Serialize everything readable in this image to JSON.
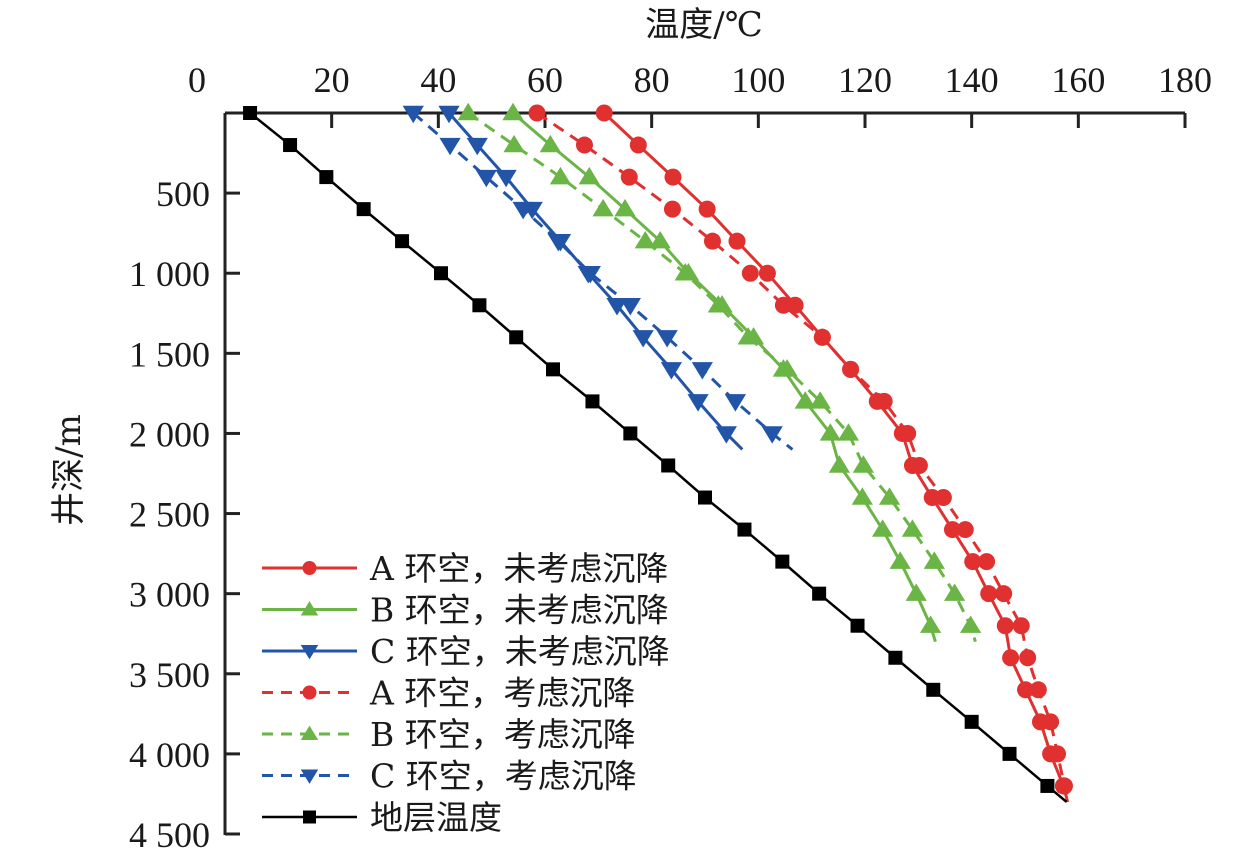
{
  "chart_data": {
    "type": "line",
    "title": "",
    "xlabel": "温度/℃",
    "ylabel": "井深/m",
    "x_axis_position": "top",
    "y_axis_inverted": true,
    "xlim": [
      0,
      180
    ],
    "ylim": [
      0,
      4500
    ],
    "xticks": [
      0,
      20,
      40,
      60,
      80,
      100,
      120,
      140,
      160,
      180
    ],
    "xtick_labels": [
      "0",
      "20",
      "40",
      "60",
      "80",
      "100",
      "120",
      "140",
      "160",
      "180"
    ],
    "yticks": [
      500,
      1000,
      1500,
      2000,
      2500,
      3000,
      3500,
      4000,
      4500
    ],
    "ytick_labels": [
      "500",
      "1 000",
      "1 500",
      "2 000",
      "2 500",
      "3 000",
      "3 500",
      "4 000",
      "4 500"
    ],
    "grid": false,
    "legend_position": "bottom-left",
    "series": [
      {
        "name": "A 环空，未考虑沉降",
        "color": "#e03030",
        "dash": "solid",
        "marker": "circle",
        "points": [
          [
            71.1,
            0
          ],
          [
            77.5,
            200
          ],
          [
            84.0,
            400
          ],
          [
            90.4,
            600
          ],
          [
            96.0,
            800
          ],
          [
            101.7,
            1000
          ],
          [
            106.9,
            1200
          ],
          [
            112.0,
            1400
          ],
          [
            117.3,
            1600
          ],
          [
            122.3,
            1800
          ],
          [
            127.0,
            2000
          ],
          [
            128.9,
            2200
          ],
          [
            132.6,
            2400
          ],
          [
            136.4,
            2600
          ],
          [
            140.2,
            2800
          ],
          [
            143.2,
            3000
          ],
          [
            146.3,
            3200
          ],
          [
            147.3,
            3400
          ],
          [
            150.1,
            3600
          ],
          [
            152.9,
            3800
          ],
          [
            154.8,
            4000
          ],
          [
            157.2,
            4200
          ]
        ],
        "line_end": [
          158.0,
          4300
        ]
      },
      {
        "name": "B 环空，未考虑沉降",
        "color": "#6ab545",
        "dash": "solid",
        "marker": "triangle-up",
        "points": [
          [
            54.0,
            0
          ],
          [
            61.0,
            200
          ],
          [
            68.3,
            400
          ],
          [
            75.0,
            600
          ],
          [
            81.6,
            800
          ],
          [
            86.9,
            1000
          ],
          [
            93.2,
            1200
          ],
          [
            99.1,
            1400
          ],
          [
            104.7,
            1600
          ],
          [
            108.8,
            1800
          ],
          [
            113.5,
            2000
          ],
          [
            115.2,
            2200
          ],
          [
            119.5,
            2400
          ],
          [
            123.3,
            2600
          ],
          [
            126.6,
            2800
          ],
          [
            129.6,
            3000
          ],
          [
            132.3,
            3200
          ]
        ],
        "line_end": [
          133.2,
          3300
        ]
      },
      {
        "name": "C 环空，未考虑沉降",
        "color": "#2255a8",
        "dash": "solid",
        "marker": "triangle-down",
        "points": [
          [
            42.0,
            0
          ],
          [
            47.3,
            200
          ],
          [
            52.7,
            400
          ],
          [
            57.6,
            600
          ],
          [
            62.9,
            800
          ],
          [
            68.1,
            1000
          ],
          [
            73.5,
            1200
          ],
          [
            78.4,
            1400
          ],
          [
            83.7,
            1600
          ],
          [
            88.7,
            1800
          ],
          [
            94.0,
            2000
          ]
        ],
        "line_end": [
          97.0,
          2100
        ]
      },
      {
        "name": "A 环空，考虑沉降",
        "color": "#e03030",
        "dash": "dashed",
        "marker": "circle",
        "points": [
          [
            58.5,
            0
          ],
          [
            67.4,
            200
          ],
          [
            75.8,
            400
          ],
          [
            83.9,
            600
          ],
          [
            91.4,
            800
          ],
          [
            98.5,
            1000
          ],
          [
            104.7,
            1200
          ],
          [
            112.0,
            1400
          ],
          [
            117.3,
            1600
          ],
          [
            123.6,
            1800
          ],
          [
            128.0,
            2000
          ],
          [
            130.2,
            2200
          ],
          [
            134.7,
            2400
          ],
          [
            138.8,
            2600
          ],
          [
            142.8,
            2800
          ],
          [
            146.0,
            3000
          ],
          [
            149.3,
            3200
          ],
          [
            150.5,
            3400
          ],
          [
            152.5,
            3600
          ],
          [
            154.8,
            3800
          ],
          [
            156.1,
            4000
          ],
          [
            157.4,
            4200
          ]
        ],
        "line_end": [
          158.3,
          4300
        ]
      },
      {
        "name": "B 环空，考虑沉降",
        "color": "#6ab545",
        "dash": "dashed",
        "marker": "triangle-up",
        "points": [
          [
            45.6,
            0
          ],
          [
            54.2,
            200
          ],
          [
            62.9,
            400
          ],
          [
            70.9,
            600
          ],
          [
            78.8,
            800
          ],
          [
            86.3,
            1000
          ],
          [
            92.5,
            1200
          ],
          [
            98.1,
            1400
          ],
          [
            105.4,
            1600
          ],
          [
            111.6,
            1800
          ],
          [
            116.9,
            2000
          ],
          [
            119.7,
            2200
          ],
          [
            124.6,
            2400
          ],
          [
            128.9,
            2600
          ],
          [
            133.0,
            2800
          ],
          [
            136.8,
            3000
          ],
          [
            139.8,
            3200
          ]
        ],
        "line_end": [
          140.7,
          3300
        ]
      },
      {
        "name": "C 环空，考虑沉降",
        "color": "#2255a8",
        "dash": "dashed",
        "marker": "triangle-down",
        "points": [
          [
            35.3,
            0
          ],
          [
            42.2,
            200
          ],
          [
            49.0,
            400
          ],
          [
            55.9,
            600
          ],
          [
            62.5,
            800
          ],
          [
            68.5,
            1000
          ],
          [
            76.0,
            1200
          ],
          [
            82.9,
            1400
          ],
          [
            89.5,
            1600
          ],
          [
            95.7,
            1800
          ],
          [
            102.6,
            2000
          ]
        ],
        "line_end": [
          106.4,
          2100
        ]
      },
      {
        "name": "地层温度",
        "color": "#000000",
        "dash": "solid",
        "marker": "square",
        "points": [
          [
            4.7,
            0
          ],
          [
            12.2,
            200
          ],
          [
            19.0,
            400
          ],
          [
            26.0,
            600
          ],
          [
            33.2,
            800
          ],
          [
            40.5,
            1000
          ],
          [
            47.7,
            1200
          ],
          [
            54.6,
            1400
          ],
          [
            61.5,
            1600
          ],
          [
            68.9,
            1800
          ],
          [
            76.0,
            2000
          ],
          [
            83.1,
            2200
          ],
          [
            90.0,
            2400
          ],
          [
            97.4,
            2600
          ],
          [
            104.5,
            2800
          ],
          [
            111.4,
            3000
          ],
          [
            118.6,
            3200
          ],
          [
            125.7,
            3400
          ],
          [
            132.8,
            3600
          ],
          [
            140.0,
            3800
          ],
          [
            147.1,
            4000
          ],
          [
            154.2,
            4200
          ]
        ],
        "line_end": [
          157.8,
          4300
        ]
      }
    ]
  }
}
